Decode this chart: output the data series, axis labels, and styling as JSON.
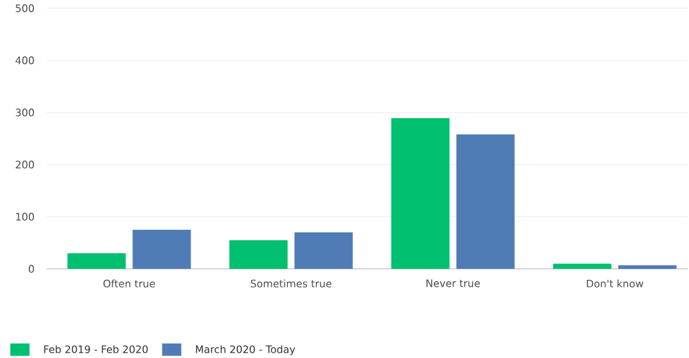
{
  "chart_data": {
    "type": "bar",
    "categories": [
      "Often true",
      "Sometimes true",
      "Never true",
      "Don't know"
    ],
    "series": [
      {
        "name": "Feb 2019 - Feb 2020",
        "color": "#00bf6f",
        "values": [
          30,
          55,
          289,
          10
        ]
      },
      {
        "name": "March 2020 - Today",
        "color": "#507cb6",
        "values": [
          75,
          70,
          258,
          7
        ]
      }
    ],
    "ylim": [
      0,
      500
    ],
    "yticks": [
      0,
      100,
      200,
      300,
      400,
      500
    ],
    "grid": "y",
    "legend": "bottom left"
  }
}
